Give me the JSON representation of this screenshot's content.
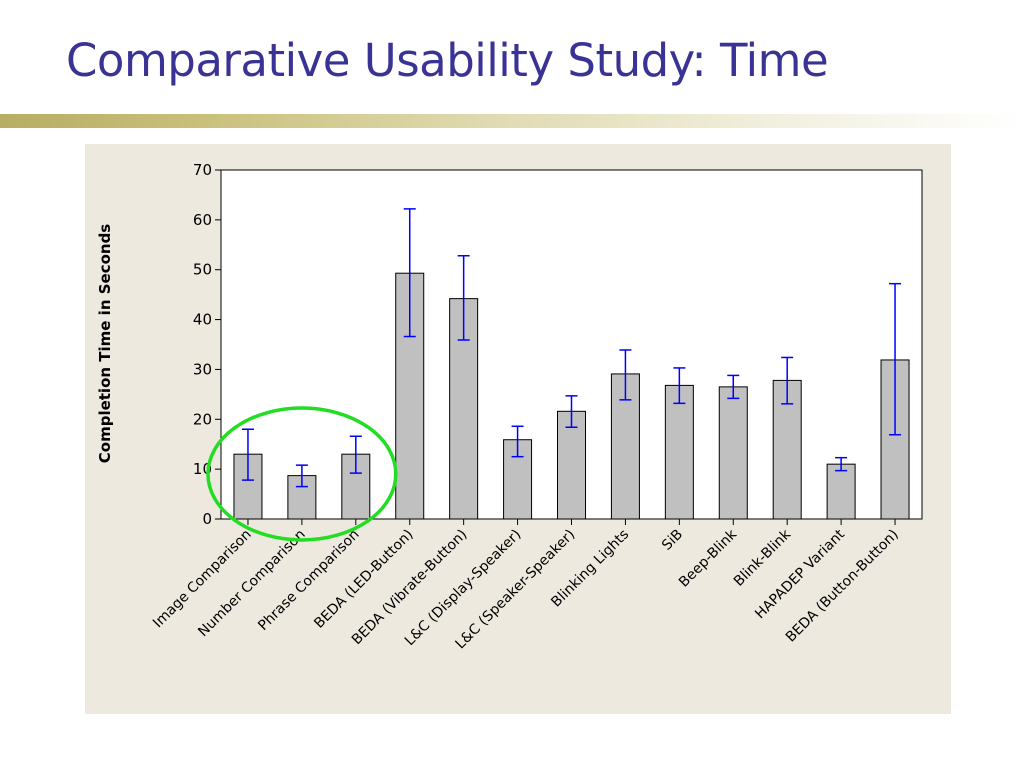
{
  "slide": {
    "title": "Comparative Usability Study: Time"
  },
  "colors": {
    "title": "#3a3396",
    "panel_background": "#ede9df",
    "bar_fill": "#c0c0c0",
    "error_bar": "#0000ff",
    "highlight_ellipse": "#22dd22"
  },
  "chart_data": {
    "type": "bar",
    "title": "",
    "xlabel": "",
    "ylabel": "Completion Time in Seconds",
    "ylim": [
      0,
      70
    ],
    "yticks": [
      0,
      10,
      20,
      30,
      40,
      50,
      60,
      70
    ],
    "grid": false,
    "error_bars": true,
    "categories": [
      "Image Comparison",
      "Number Comparison",
      "Phrase Comparison",
      "BEDA (LED-Button)",
      "BEDA (Vibrate-Button)",
      "L&C (Display-Speaker)",
      "L&C (Speaker-Speaker)",
      "Blinking Lights",
      "SiB",
      "Beep-Blink",
      "Blink-Blink",
      "HAPADEP Variant",
      "BEDA (Button-Button)"
    ],
    "values": [
      13,
      8.7,
      13,
      49.3,
      44.2,
      15.9,
      21.6,
      29.1,
      26.8,
      26.5,
      27.8,
      11,
      31.9
    ],
    "error_low": [
      7.8,
      6.5,
      9.2,
      36.6,
      35.9,
      12.5,
      18.4,
      23.9,
      23.2,
      24.2,
      23.1,
      9.7,
      16.9
    ],
    "error_high": [
      18,
      10.8,
      16.6,
      62.2,
      52.8,
      18.6,
      24.7,
      33.9,
      30.3,
      28.8,
      32.4,
      12.3,
      47.2
    ],
    "highlighted_categories": [
      "Image Comparison",
      "Number Comparison",
      "Phrase Comparison"
    ]
  }
}
